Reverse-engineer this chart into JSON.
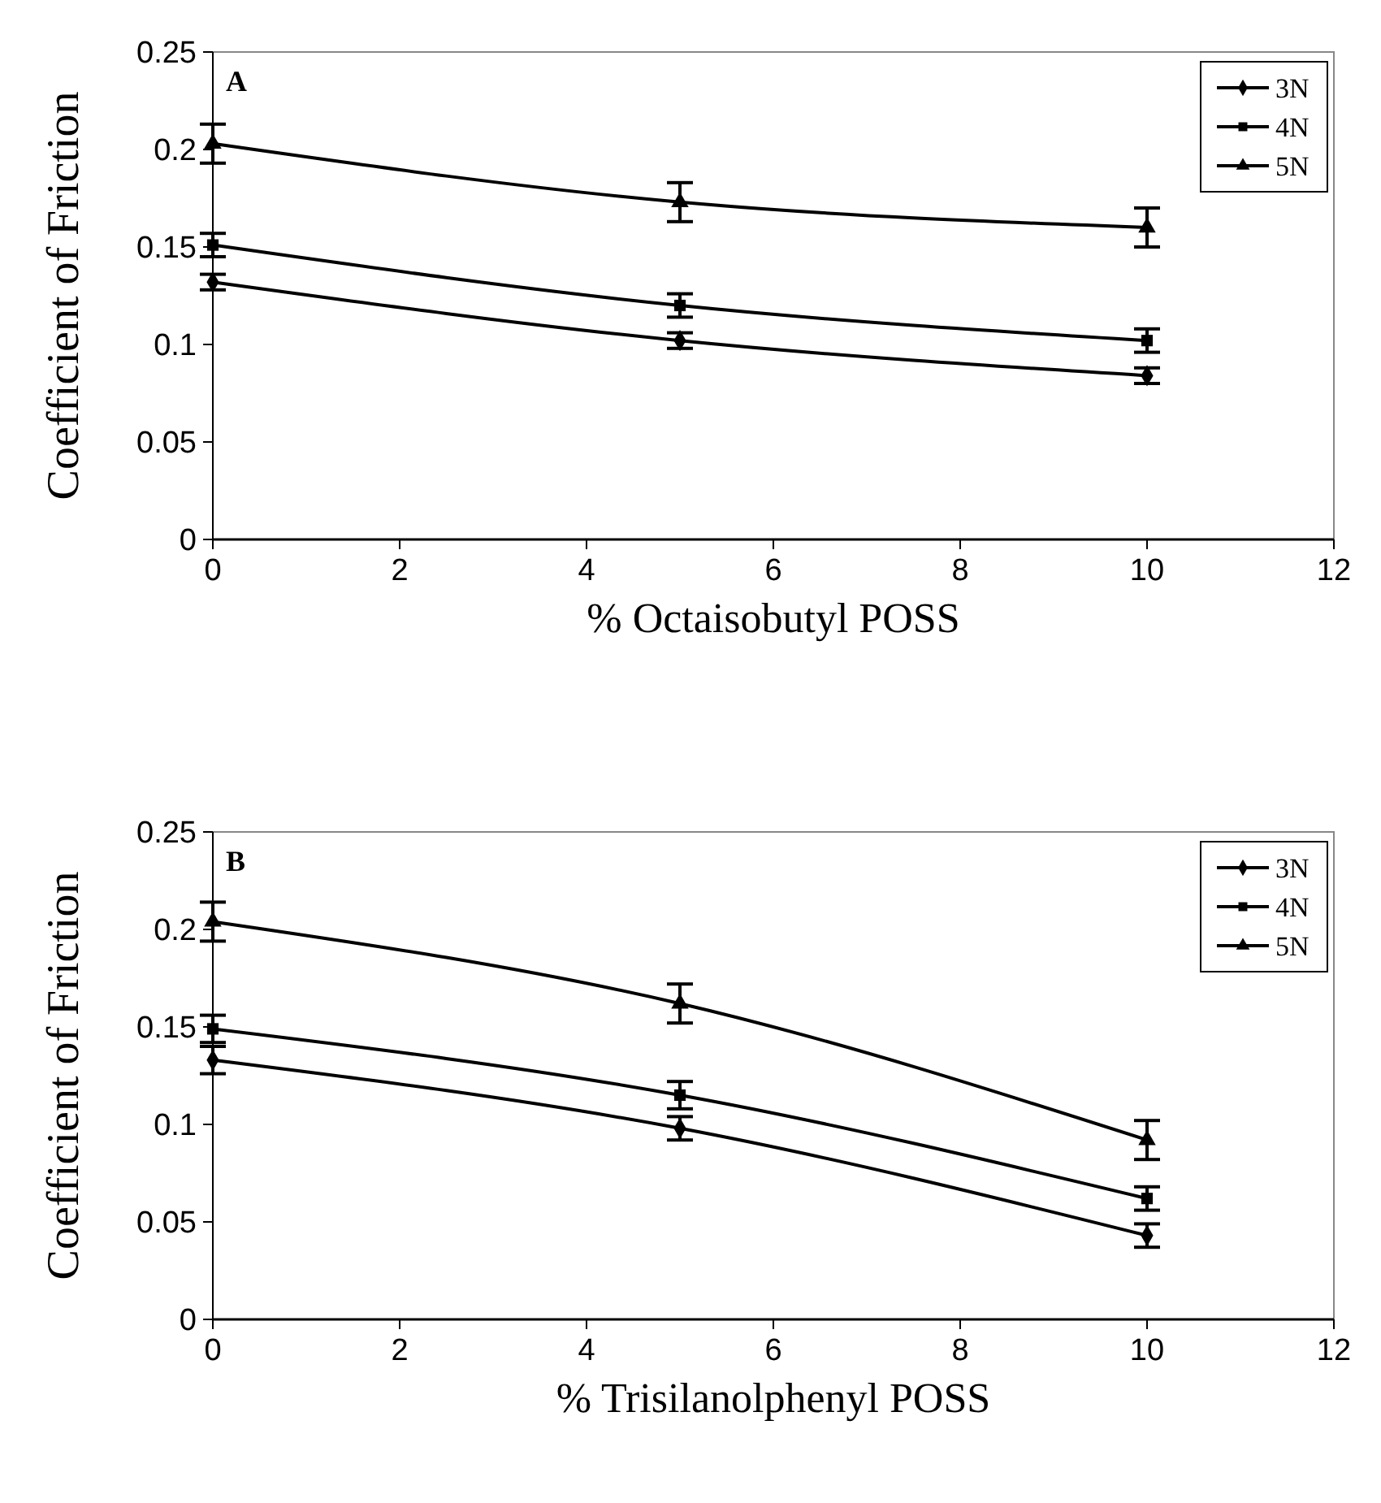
{
  "chart_data": [
    {
      "type": "line",
      "xlabel": "% Octaisobutyl POSS",
      "ylabel": "Coefficient of Friction",
      "annotations": [
        "A"
      ],
      "x": [
        0,
        5,
        10
      ],
      "xlim": [
        0,
        12
      ],
      "xticks": [
        0,
        2,
        4,
        6,
        8,
        10,
        12
      ],
      "ylim": [
        0,
        0.25
      ],
      "yticks": [
        0,
        0.05,
        0.1,
        0.15,
        0.2,
        0.25
      ],
      "grid": false,
      "legend": "top right",
      "line_style": "solid",
      "series": [
        {
          "name": "3N",
          "color": "#000000",
          "marker": "diamond",
          "values": [
            0.132,
            0.102,
            0.084
          ],
          "errors": [
            0.004,
            0.004,
            0.004
          ]
        },
        {
          "name": "4N",
          "color": "#000000",
          "marker": "square",
          "values": [
            0.151,
            0.12,
            0.102
          ],
          "errors": [
            0.006,
            0.006,
            0.006
          ]
        },
        {
          "name": "5N",
          "color": "#000000",
          "marker": "triangle",
          "values": [
            0.203,
            0.173,
            0.16
          ],
          "errors": [
            0.01,
            0.01,
            0.01
          ]
        }
      ]
    },
    {
      "type": "line",
      "xlabel": "% Trisilanolphenyl POSS",
      "ylabel": "Coefficient of Friction",
      "annotations": [
        "B"
      ],
      "x": [
        0,
        5,
        10
      ],
      "xlim": [
        0,
        12
      ],
      "xticks": [
        0,
        2,
        4,
        6,
        8,
        10,
        12
      ],
      "ylim": [
        0,
        0.25
      ],
      "yticks": [
        0,
        0.05,
        0.1,
        0.15,
        0.2,
        0.25
      ],
      "grid": false,
      "legend": "top right",
      "line_style": "solid",
      "series": [
        {
          "name": "3N",
          "color": "#000000",
          "marker": "diamond",
          "values": [
            0.133,
            0.098,
            0.043
          ],
          "errors": [
            0.007,
            0.006,
            0.006
          ]
        },
        {
          "name": "4N",
          "color": "#000000",
          "marker": "square",
          "values": [
            0.149,
            0.115,
            0.062
          ],
          "errors": [
            0.007,
            0.007,
            0.006
          ]
        },
        {
          "name": "5N",
          "color": "#000000",
          "marker": "triangle",
          "values": [
            0.204,
            0.162,
            0.092
          ],
          "errors": [
            0.01,
            0.01,
            0.01
          ]
        }
      ]
    }
  ]
}
